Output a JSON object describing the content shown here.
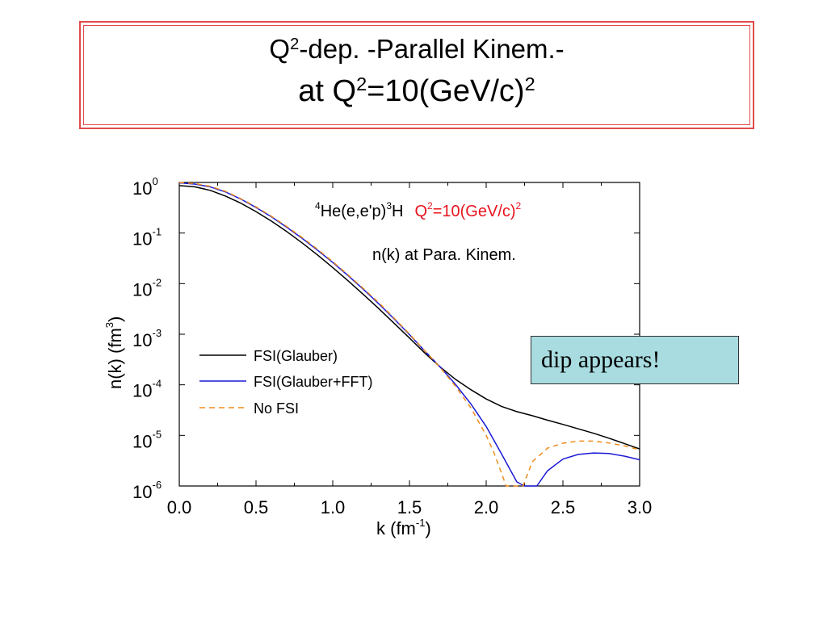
{
  "slide": {
    "title_line1": {
      "pre": "Q",
      "sup": "2",
      "post": "-dep. -Parallel Kinem.-"
    },
    "title_line2": {
      "pre": "at Q",
      "sup": "2",
      "mid": "=10(GeV/c)",
      "sup2": "2"
    },
    "callout": "dip appears!"
  },
  "chart_data": {
    "type": "line",
    "title": {
      "sup1": "4",
      "a": "He(e,e'p)",
      "sup2": "3",
      "b": "H",
      "q": "Q",
      "qsup": "2",
      "qrest": "=10(GeV/c)",
      "qsup2": "2"
    },
    "subtitle": "n(k) at Para. Kinem.",
    "xlabel": {
      "base": "k (fm",
      "sup": "-1",
      "close": ")"
    },
    "ylabel": {
      "base": "n(k) (fm",
      "sup": "3",
      "close": ")"
    },
    "xlim": [
      0,
      3
    ],
    "ylim_log10": [
      -6,
      0
    ],
    "y_scale": "log",
    "x_ticks": [
      "0.0",
      "0.5",
      "1.0",
      "1.5",
      "2.0",
      "2.5",
      "3.0"
    ],
    "y_ticks": [
      {
        "base": "10",
        "exp": "0"
      },
      {
        "base": "10",
        "exp": "-1"
      },
      {
        "base": "10",
        "exp": "-2"
      },
      {
        "base": "10",
        "exp": "-3"
      },
      {
        "base": "10",
        "exp": "-4"
      },
      {
        "base": "10",
        "exp": "-5"
      },
      {
        "base": "10",
        "exp": "-6"
      }
    ],
    "legend_position": "lower-left",
    "grid": false,
    "series": [
      {
        "name": "FSI(Glauber)",
        "color": "#000000",
        "dash": false,
        "x": [
          0.0,
          0.1,
          0.2,
          0.3,
          0.4,
          0.5,
          0.6,
          0.7,
          0.8,
          0.9,
          1.0,
          1.1,
          1.2,
          1.3,
          1.4,
          1.5,
          1.6,
          1.7,
          1.8,
          1.9,
          2.0,
          2.1,
          2.2,
          2.3,
          2.4,
          2.5,
          2.6,
          2.7,
          2.8,
          2.9,
          3.0
        ],
        "y": [
          0.865,
          0.82,
          0.7,
          0.54,
          0.39,
          0.265,
          0.172,
          0.107,
          0.064,
          0.037,
          0.0208,
          0.0114,
          0.0061,
          0.0032,
          0.00165,
          0.00084,
          0.000425,
          0.000225,
          0.000128,
          8e-05,
          5.25e-05,
          3.75e-05,
          2.95e-05,
          2.45e-05,
          2e-05,
          1.65e-05,
          1.35e-05,
          1.1e-05,
          8.8e-06,
          6.9e-06,
          5.4e-06
        ]
      },
      {
        "name": "FSI(Glauber+FFT)",
        "color": "#1a1ad6",
        "dash": false,
        "x": [
          0.0,
          0.1,
          0.2,
          0.3,
          0.4,
          0.5,
          0.6,
          0.7,
          0.8,
          0.9,
          1.0,
          1.1,
          1.2,
          1.3,
          1.4,
          1.5,
          1.6,
          1.7,
          1.8,
          1.9,
          2.0,
          2.1,
          2.2,
          2.25,
          2.33,
          2.4,
          2.5,
          2.6,
          2.7,
          2.8,
          2.9,
          3.0
        ],
        "y": [
          0.98,
          0.93,
          0.82,
          0.65,
          0.47,
          0.32,
          0.21,
          0.13,
          0.079,
          0.046,
          0.0262,
          0.0144,
          0.0077,
          0.004,
          0.00201,
          0.00098,
          0.000465,
          0.000225,
          0.000102,
          4.2e-05,
          1.5e-05,
          4.3e-06,
          1.2e-06,
          1e-06,
          1e-06,
          2e-06,
          3.4e-06,
          4.2e-06,
          4.5e-06,
          4.4e-06,
          3.9e-06,
          3.3e-06
        ]
      },
      {
        "name": "No FSI",
        "color": "#f08c1e",
        "dash": true,
        "x": [
          0.0,
          0.1,
          0.2,
          0.3,
          0.4,
          0.5,
          0.6,
          0.7,
          0.8,
          0.9,
          1.0,
          1.1,
          1.2,
          1.3,
          1.4,
          1.5,
          1.6,
          1.7,
          1.8,
          1.9,
          2.0,
          2.05,
          2.1,
          2.13,
          2.24,
          2.3,
          2.4,
          2.5,
          2.6,
          2.7,
          2.8,
          2.9,
          3.0
        ],
        "y": [
          1.0,
          0.95,
          0.84,
          0.67,
          0.48,
          0.33,
          0.215,
          0.135,
          0.082,
          0.048,
          0.0272,
          0.0149,
          0.008,
          0.0042,
          0.00208,
          0.00101,
          0.00047,
          0.00022,
          9.4e-05,
          3.5e-05,
          1e-05,
          4.6e-06,
          1.8e-06,
          1e-06,
          1e-06,
          3e-06,
          5.6e-06,
          7e-06,
          7.7e-06,
          7.7e-06,
          7.1e-06,
          6.2e-06,
          5.2e-06
        ]
      }
    ]
  }
}
